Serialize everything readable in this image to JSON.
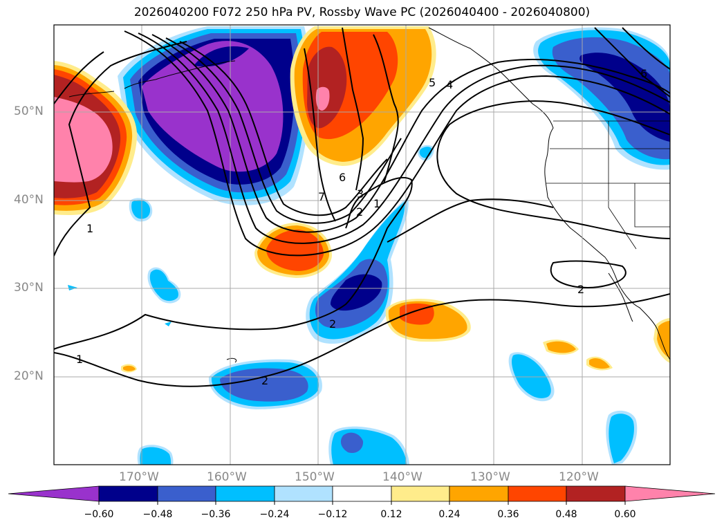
{
  "title": "2026040200 F072 250 hPa PV, Rossby Wave PC (2026040400 - 2026040800)",
  "lat_labels": [
    "50°N",
    "40°N",
    "30°N",
    "20°N"
  ],
  "lon_labels": [
    "170°W",
    "160°W",
    "150°W",
    "140°W",
    "130°W",
    "120°W"
  ],
  "colorbar": {
    "ticks": [
      "−0.60",
      "−0.48",
      "−0.36",
      "−0.24",
      "−0.12",
      "0.12",
      "0.24",
      "0.36",
      "0.48",
      "0.60"
    ],
    "colors": [
      "#9932cc",
      "#00008b",
      "#3a5fcd",
      "#00bfff",
      "#b0e2ff",
      "#ffffff",
      "#ffec8b",
      "#ffa500",
      "#ff4500",
      "#b22222",
      "#ff82ab"
    ]
  },
  "contour_labels": [
    "1",
    "1",
    "1",
    "2",
    "2",
    "2",
    "2",
    "3",
    "4",
    "5",
    "6",
    "6",
    "7"
  ],
  "palette": {
    "purple": "#9932cc",
    "navy": "#00008b",
    "royal": "#3a5fcd",
    "sky": "#00bfff",
    "lightsky": "#b0e2ff",
    "yellow": "#ffec8b",
    "orange": "#ffa500",
    "orangered": "#ff4500",
    "firebrick": "#b22222",
    "pink": "#ff82ab"
  }
}
